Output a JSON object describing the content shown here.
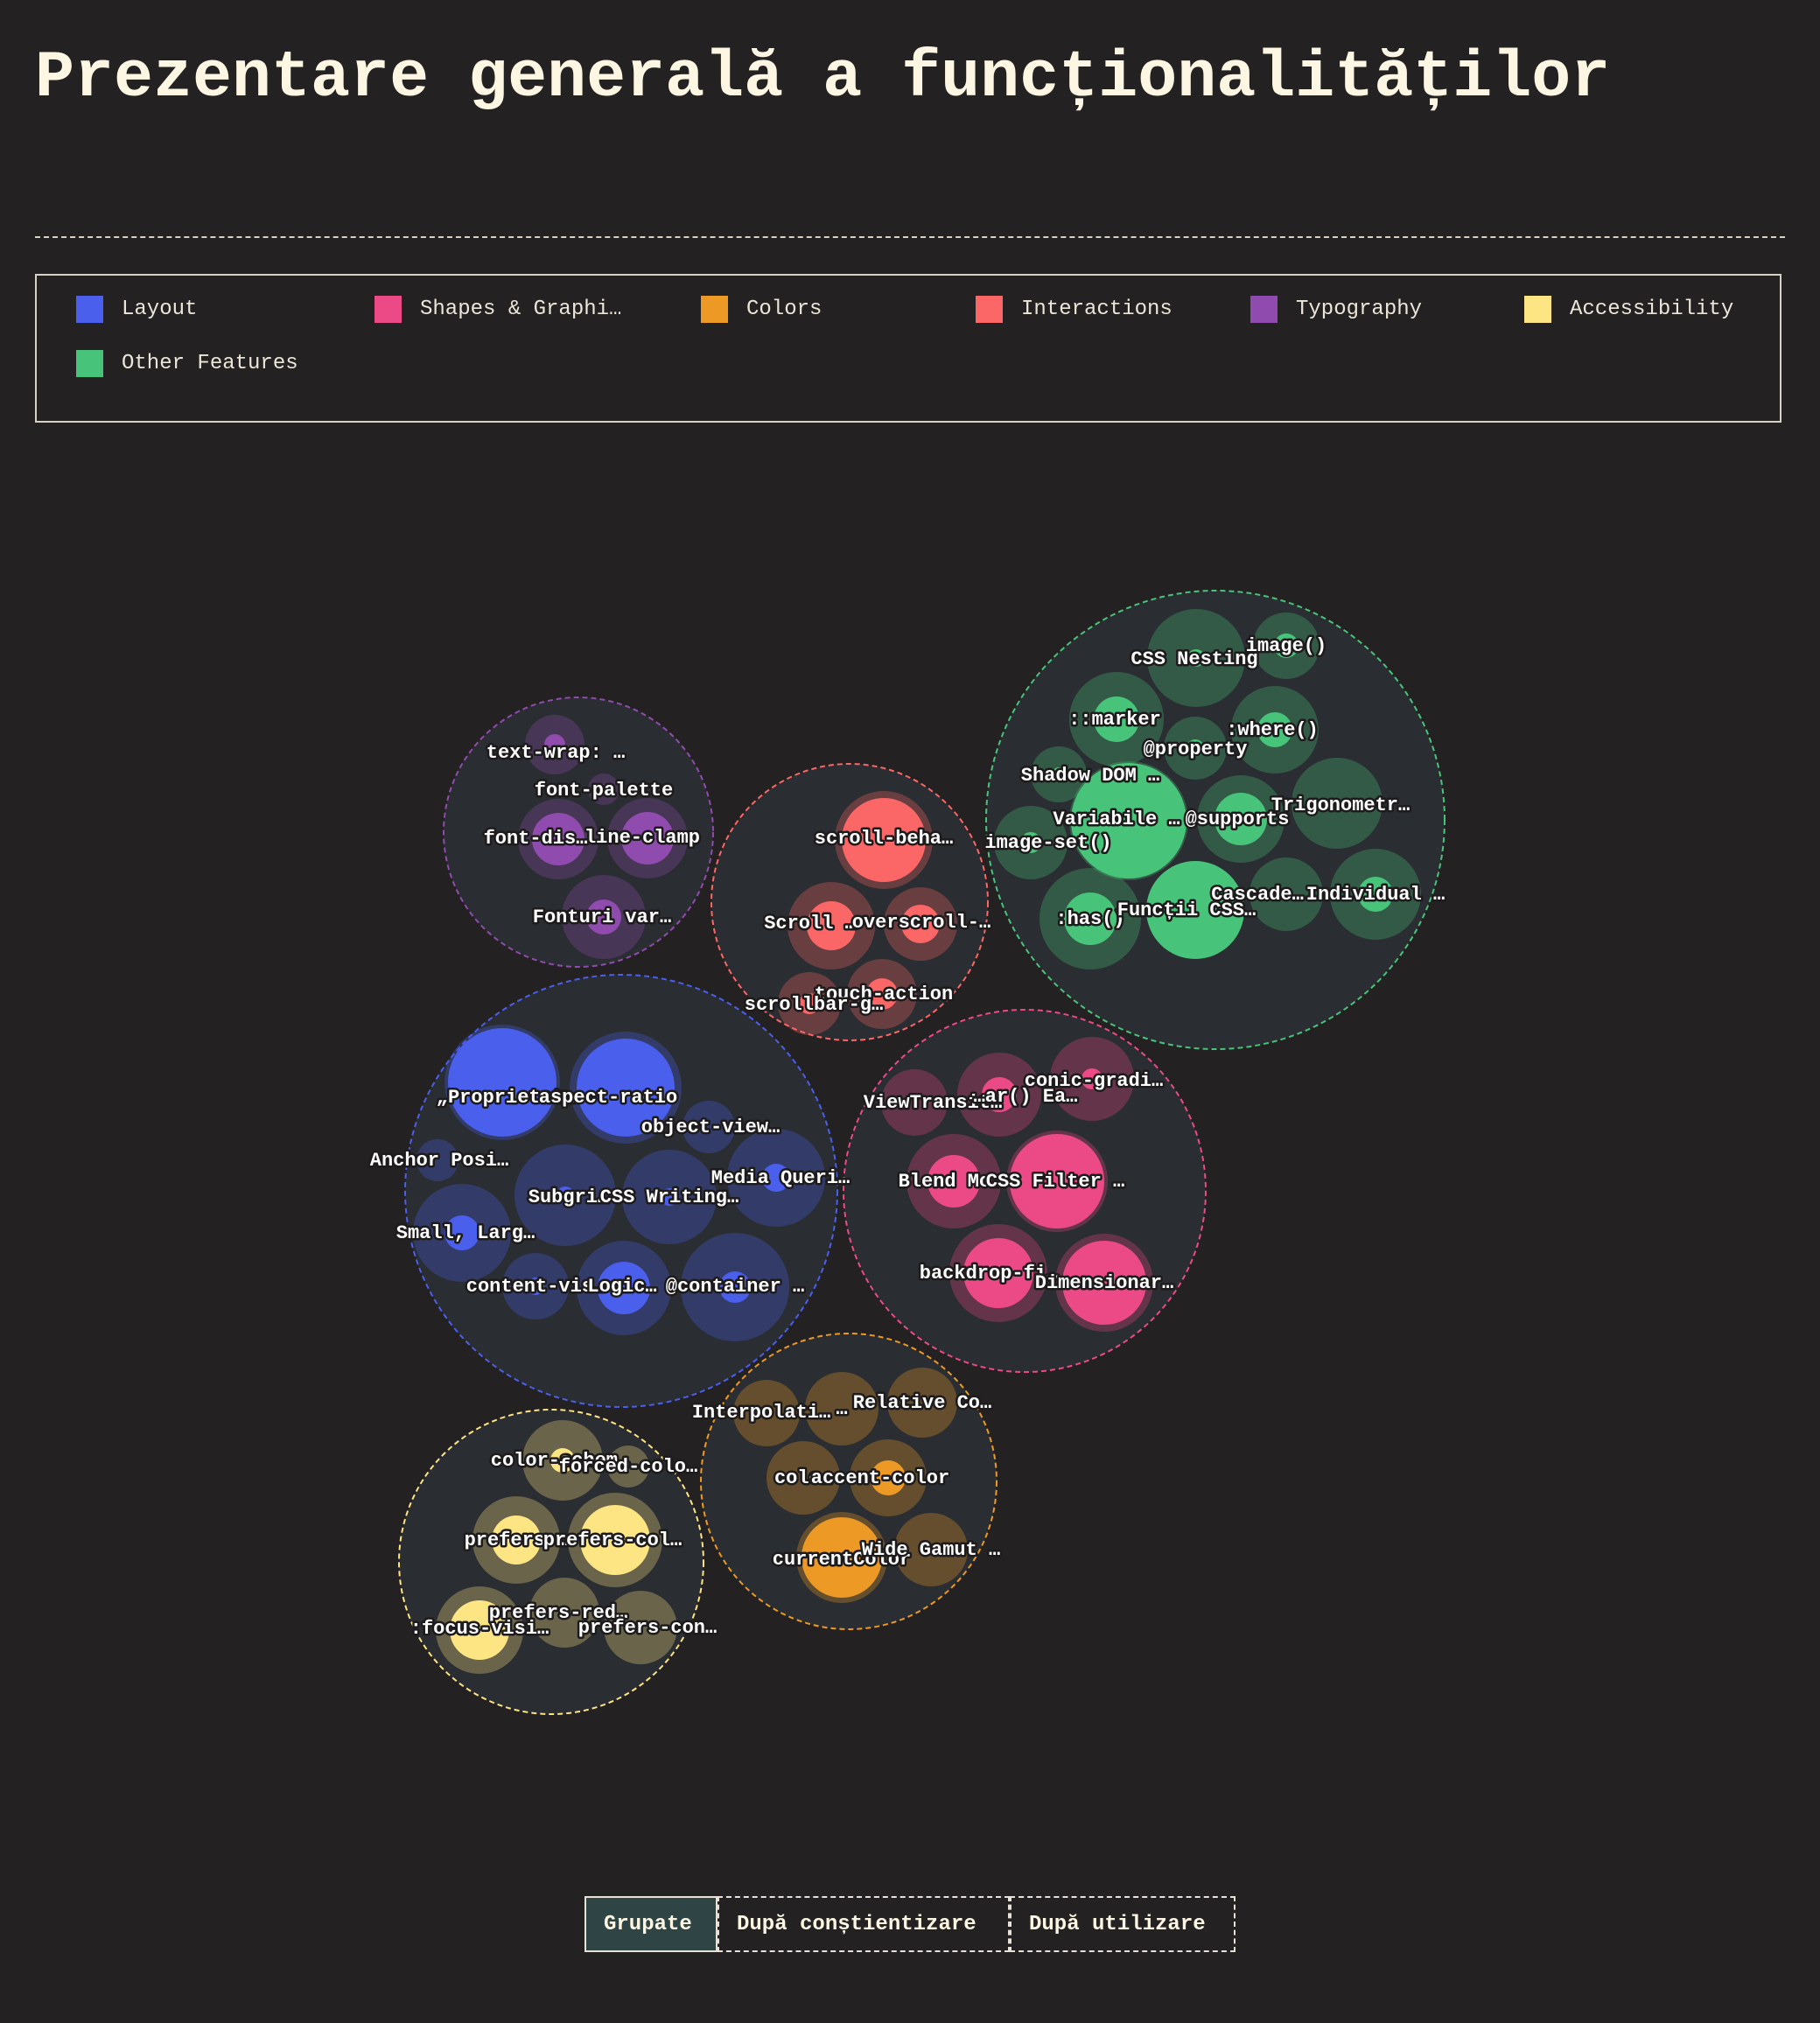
{
  "page": {
    "title": "Prezentare generală a funcționalităților"
  },
  "legend": [
    {
      "label": "Layout",
      "color": "#4a5fec"
    },
    {
      "label": "Shapes & Graphi…",
      "color": "#ec4a86"
    },
    {
      "label": "Colors",
      "color": "#ec9a25"
    },
    {
      "label": "Interactions",
      "color": "#fb6766"
    },
    {
      "label": "Typography",
      "color": "#8f4bad"
    },
    {
      "label": "Accessibility",
      "color": "#fde584"
    },
    {
      "label": "Other Features",
      "color": "#48c47a"
    }
  ],
  "controls": {
    "grouped": "Grupate",
    "by_awareness": "După conștientizare",
    "by_usage": "După utilizare",
    "active": "grouped"
  },
  "chart_data": {
    "type": "bubble",
    "title": "",
    "groups": [
      {
        "name": "Typography",
        "color": "#8f4bad",
        "features": [
          {
            "label": "text-wrap: …"
          },
          {
            "label": "font-palette"
          },
          {
            "label": "font-dis…"
          },
          {
            "label": "line-clamp"
          },
          {
            "label": "Fonturi var…"
          }
        ]
      },
      {
        "name": "Interactions",
        "color": "#fb6766",
        "features": [
          {
            "label": "scroll-beha…"
          },
          {
            "label": "Scroll …"
          },
          {
            "label": "overscroll-…"
          },
          {
            "label": "touch-action"
          },
          {
            "label": "scrollbar-g…"
          }
        ]
      },
      {
        "name": "Other Features",
        "color": "#48c47a",
        "features": [
          {
            "label": "CSS Nesting"
          },
          {
            "label": "image()"
          },
          {
            "label": "::marker"
          },
          {
            "label": ":where()"
          },
          {
            "label": "@property"
          },
          {
            "label": "Shadow DOM …"
          },
          {
            "label": "Variabile …"
          },
          {
            "label": "@supports"
          },
          {
            "label": "Trigonometr…"
          },
          {
            "label": "image-set()"
          },
          {
            "label": "Cascade…"
          },
          {
            "label": "Individual …"
          },
          {
            "label": ":has()"
          },
          {
            "label": "Funcții CSS…"
          }
        ]
      },
      {
        "name": "Layout",
        "color": "#4a5fec",
        "features": [
          {
            "label": "„Proprietat…"
          },
          {
            "label": "aspect-ratio"
          },
          {
            "label": "object-view…"
          },
          {
            "label": "Anchor Posi…"
          },
          {
            "label": "Subgri…"
          },
          {
            "label": "CSS Writing…"
          },
          {
            "label": "Media Queri…"
          },
          {
            "label": "Small, Larg…"
          },
          {
            "label": "content-vis…"
          },
          {
            "label": "Logic…"
          },
          {
            "label": "@container …"
          }
        ]
      },
      {
        "name": "Shapes & Graphics",
        "color": "#ec4a86",
        "features": [
          {
            "label": "conic-gradi…"
          },
          {
            "label": "ViewTransit…"
          },
          {
            "label": "…ar() Ea…"
          },
          {
            "label": "Blend Mo…"
          },
          {
            "label": "CSS Filter …"
          },
          {
            "label": "backdrop-fi…"
          },
          {
            "label": "Dimensionar…"
          }
        ]
      },
      {
        "name": "Accessibility",
        "color": "#fde584",
        "features": [
          {
            "label": "color-schem…"
          },
          {
            "label": "forced-colo…"
          },
          {
            "label": "prefers-…"
          },
          {
            "label": "prefers-col…"
          },
          {
            "label": "prefers-red…"
          },
          {
            "label": ":focus-visi…"
          },
          {
            "label": "prefers-con…"
          }
        ]
      },
      {
        "name": "Colors",
        "color": "#ec9a25",
        "features": [
          {
            "label": "Interpolati…"
          },
          {
            "label": "…"
          },
          {
            "label": "Relative Co…"
          },
          {
            "label": "colo…"
          },
          {
            "label": "accent-color"
          },
          {
            "label": "currentColor"
          },
          {
            "label": "Wide Gamut …"
          }
        ]
      }
    ]
  }
}
